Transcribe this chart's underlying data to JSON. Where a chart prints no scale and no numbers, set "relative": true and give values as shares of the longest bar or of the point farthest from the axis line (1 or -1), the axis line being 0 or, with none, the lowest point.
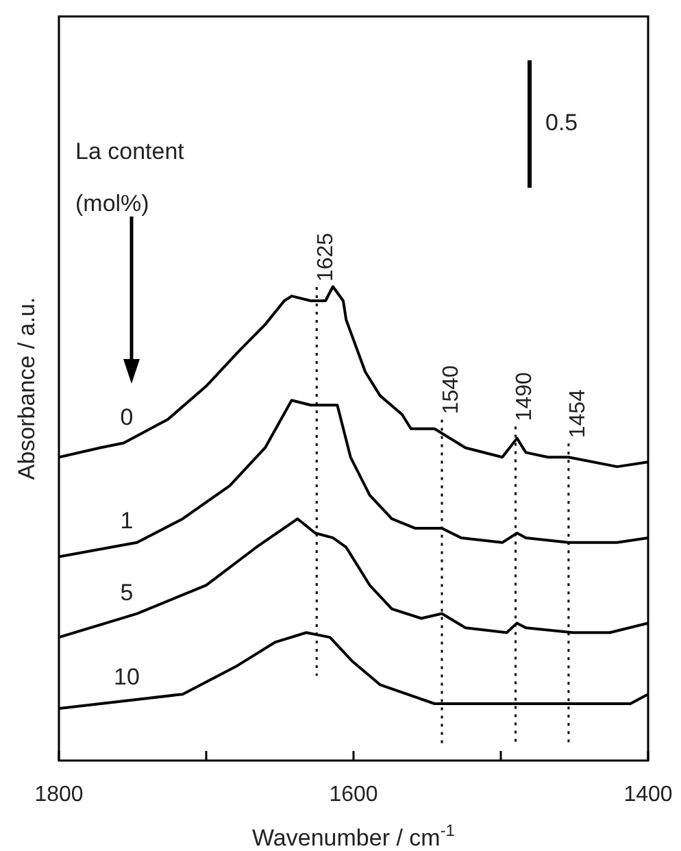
{
  "chart_data": {
    "type": "line",
    "relative": true,
    "xlabel": "Wavenumber / cm$^{-1}$",
    "ylabel": "Absorbance / a.u.",
    "legend_title": "La content\n(mol%)",
    "annotations": [
      "0.5"
    ],
    "xlim": [
      1800,
      1400
    ],
    "xticks": [
      1800,
      {
        "value": 1700,
        "label": null
      },
      1600,
      {
        "value": 1500,
        "label": null
      },
      1400
    ],
    "tick_labels": "x",
    "grid": false,
    "legend": "left",
    "marker": "none",
    "line_style": "solid",
    "ref_lines": [
      {
        "axis": "x",
        "value": 1625,
        "label": "1625",
        "line_style": "dotted"
      },
      {
        "axis": "x",
        "value": 1540,
        "label": "1540",
        "line_style": "dotted"
      },
      {
        "axis": "x",
        "value": 1490,
        "label": "1490",
        "line_style": "dotted"
      },
      {
        "axis": "x",
        "value": 1454,
        "label": "1454",
        "line_style": "dotted"
      }
    ],
    "series": [
      {
        "name": "0",
        "color": "#000000",
        "x": [
          1800,
          1772,
          1756,
          1726,
          1700,
          1679,
          1660,
          1647,
          1642,
          1629,
          1619,
          1614,
          1607,
          1605,
          1592,
          1582,
          1567,
          1561,
          1545,
          1524,
          1499,
          1489,
          1483,
          1468,
          1454,
          1421,
          1400
        ],
        "values": [
          0.64,
          0.66,
          0.67,
          0.72,
          0.79,
          0.86,
          0.92,
          0.97,
          0.98,
          0.97,
          0.97,
          1.0,
          0.97,
          0.93,
          0.82,
          0.77,
          0.73,
          0.7,
          0.7,
          0.66,
          0.64,
          0.68,
          0.65,
          0.64,
          0.64,
          0.62,
          0.63
        ]
      },
      {
        "name": "1",
        "color": "#000000",
        "x": [
          1800,
          1747,
          1716,
          1684,
          1660,
          1642,
          1629,
          1617,
          1611,
          1602,
          1589,
          1574,
          1558,
          1540,
          1527,
          1499,
          1489,
          1483,
          1454,
          1421,
          1400
        ],
        "values": [
          0.43,
          0.46,
          0.51,
          0.58,
          0.66,
          0.76,
          0.75,
          0.75,
          0.75,
          0.64,
          0.56,
          0.51,
          0.49,
          0.49,
          0.47,
          0.46,
          0.48,
          0.47,
          0.46,
          0.46,
          0.47
        ]
      },
      {
        "name": "5",
        "color": "#000000",
        "x": [
          1800,
          1747,
          1700,
          1666,
          1638,
          1626,
          1614,
          1605,
          1589,
          1574,
          1554,
          1540,
          1524,
          1496,
          1489,
          1483,
          1451,
          1426,
          1400
        ],
        "values": [
          0.26,
          0.31,
          0.37,
          0.45,
          0.51,
          0.48,
          0.47,
          0.45,
          0.37,
          0.32,
          0.3,
          0.31,
          0.28,
          0.27,
          0.29,
          0.28,
          0.27,
          0.27,
          0.29
        ]
      },
      {
        "name": "10",
        "color": "#000000",
        "x": [
          1800,
          1716,
          1679,
          1653,
          1632,
          1616,
          1601,
          1582,
          1545,
          1468,
          1412,
          1400
        ],
        "values": [
          0.11,
          0.14,
          0.2,
          0.25,
          0.27,
          0.26,
          0.21,
          0.16,
          0.12,
          0.12,
          0.12,
          0.14
        ]
      }
    ]
  }
}
